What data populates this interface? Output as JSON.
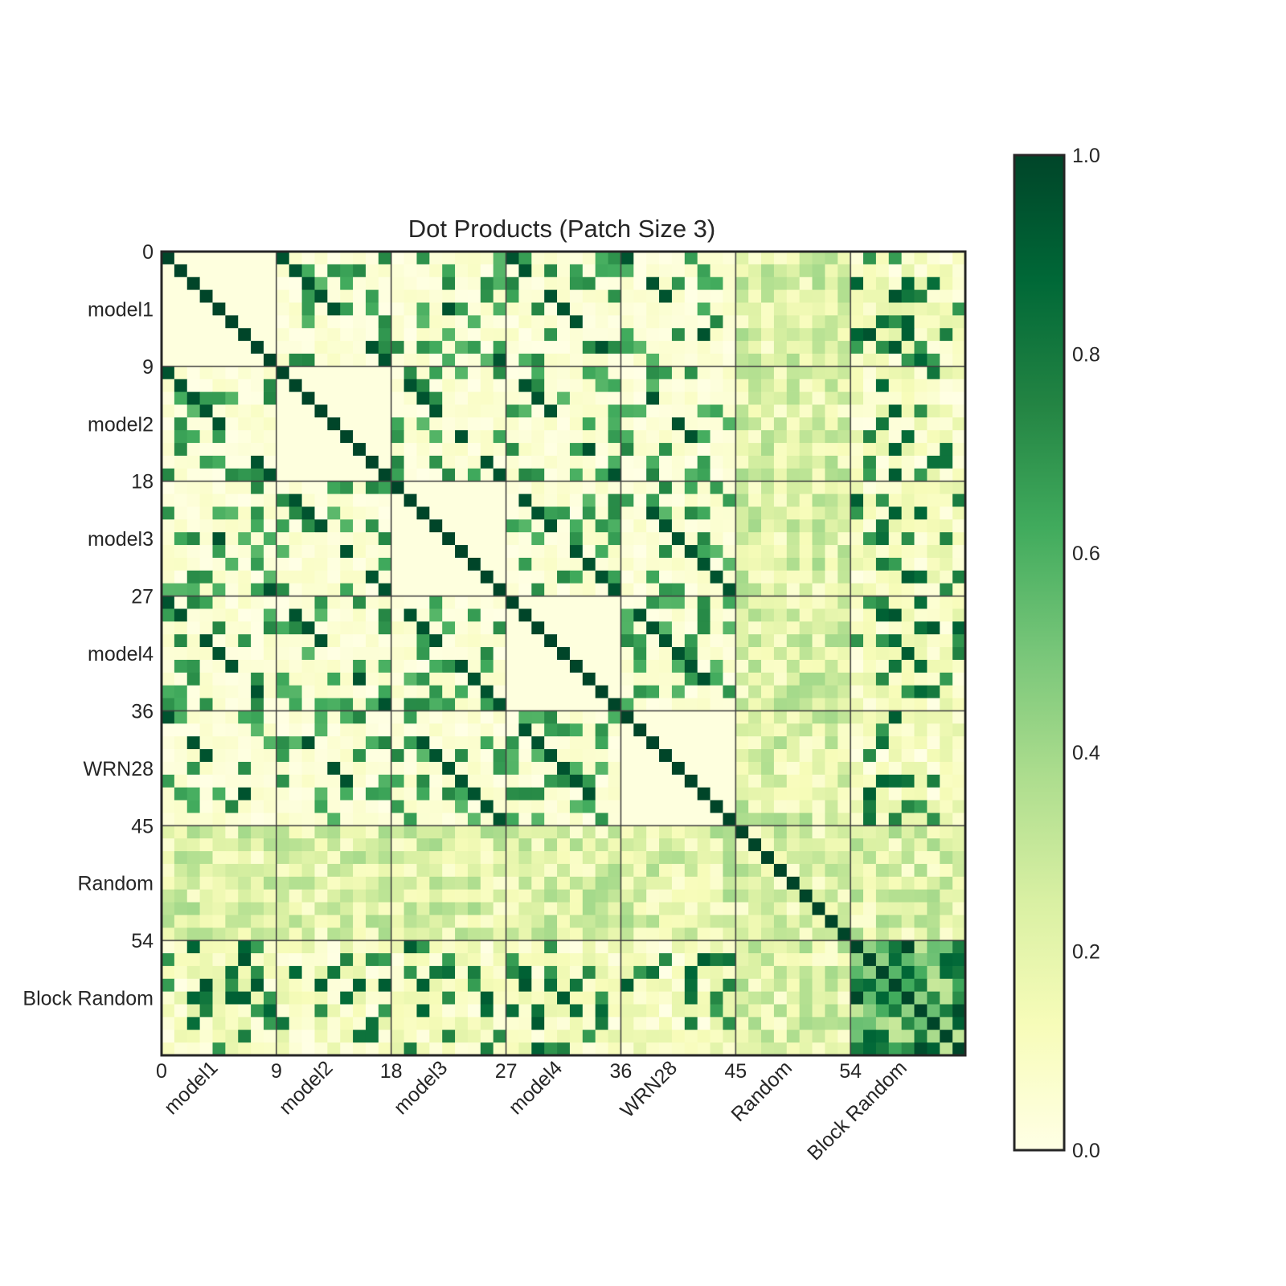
{
  "chart_data": {
    "type": "heatmap",
    "title": "Dot Products (Patch Size 3)",
    "size": 63,
    "block_size": 9,
    "groups": [
      "model1",
      "model2",
      "model3",
      "model4",
      "WRN28",
      "Random",
      "Block Random"
    ],
    "boundary_ticks": [
      "0",
      "9",
      "18",
      "27",
      "36",
      "45",
      "54"
    ],
    "colorbar": {
      "min": 0.0,
      "max": 1.0,
      "ticks": [
        "0.0",
        "0.2",
        "0.4",
        "0.6",
        "0.8",
        "1.0"
      ],
      "colormap": "Greens-like (light yellow to dark green)",
      "stops": [
        "#ffffe5",
        "#f7fcb9",
        "#d9f0a3",
        "#addd8e",
        "#78c679",
        "#41ab5d",
        "#238443",
        "#006837",
        "#004529"
      ]
    },
    "diagonal_value": 1.0,
    "block_lines": true,
    "grid": false
  }
}
